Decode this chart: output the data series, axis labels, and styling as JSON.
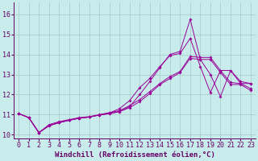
{
  "background_color": "#c8ecec",
  "grid_color": "#a8c8c8",
  "line_color": "#990099",
  "xlabel": "Windchill (Refroidissement éolien,°C)",
  "xlabel_fontsize": 6.5,
  "tick_fontsize": 6,
  "xlim": [
    -0.5,
    23.5
  ],
  "ylim": [
    9.8,
    16.6
  ],
  "yticks": [
    10,
    11,
    12,
    13,
    14,
    15,
    16
  ],
  "xticks": [
    0,
    1,
    2,
    3,
    4,
    5,
    6,
    7,
    8,
    9,
    10,
    11,
    12,
    13,
    14,
    15,
    16,
    17,
    18,
    19,
    20,
    21,
    22,
    23
  ],
  "lines": [
    [
      11.05,
      10.85,
      10.1,
      10.5,
      10.65,
      10.75,
      10.85,
      10.9,
      11.0,
      11.1,
      11.2,
      11.45,
      11.75,
      12.15,
      12.55,
      12.9,
      13.15,
      13.9,
      13.85,
      13.85,
      13.2,
      12.6,
      12.55,
      12.3
    ],
    [
      11.05,
      10.85,
      10.1,
      10.45,
      10.6,
      10.72,
      10.82,
      10.88,
      10.98,
      11.05,
      11.15,
      11.35,
      11.65,
      12.05,
      12.5,
      12.8,
      13.1,
      13.8,
      13.75,
      13.75,
      13.1,
      12.5,
      12.5,
      12.2
    ],
    [
      11.05,
      10.85,
      10.1,
      10.45,
      10.6,
      10.72,
      10.82,
      10.88,
      10.98,
      11.05,
      11.15,
      11.4,
      12.0,
      12.65,
      13.35,
      14.0,
      14.15,
      15.75,
      13.75,
      13.0,
      11.9,
      13.2,
      12.65,
      12.55
    ],
    [
      11.05,
      10.85,
      10.1,
      10.45,
      10.6,
      10.72,
      10.82,
      10.88,
      10.98,
      11.08,
      11.3,
      11.7,
      12.35,
      12.8,
      13.4,
      13.95,
      14.05,
      14.8,
      13.4,
      12.1,
      13.2,
      13.2,
      12.55,
      12.55
    ]
  ]
}
